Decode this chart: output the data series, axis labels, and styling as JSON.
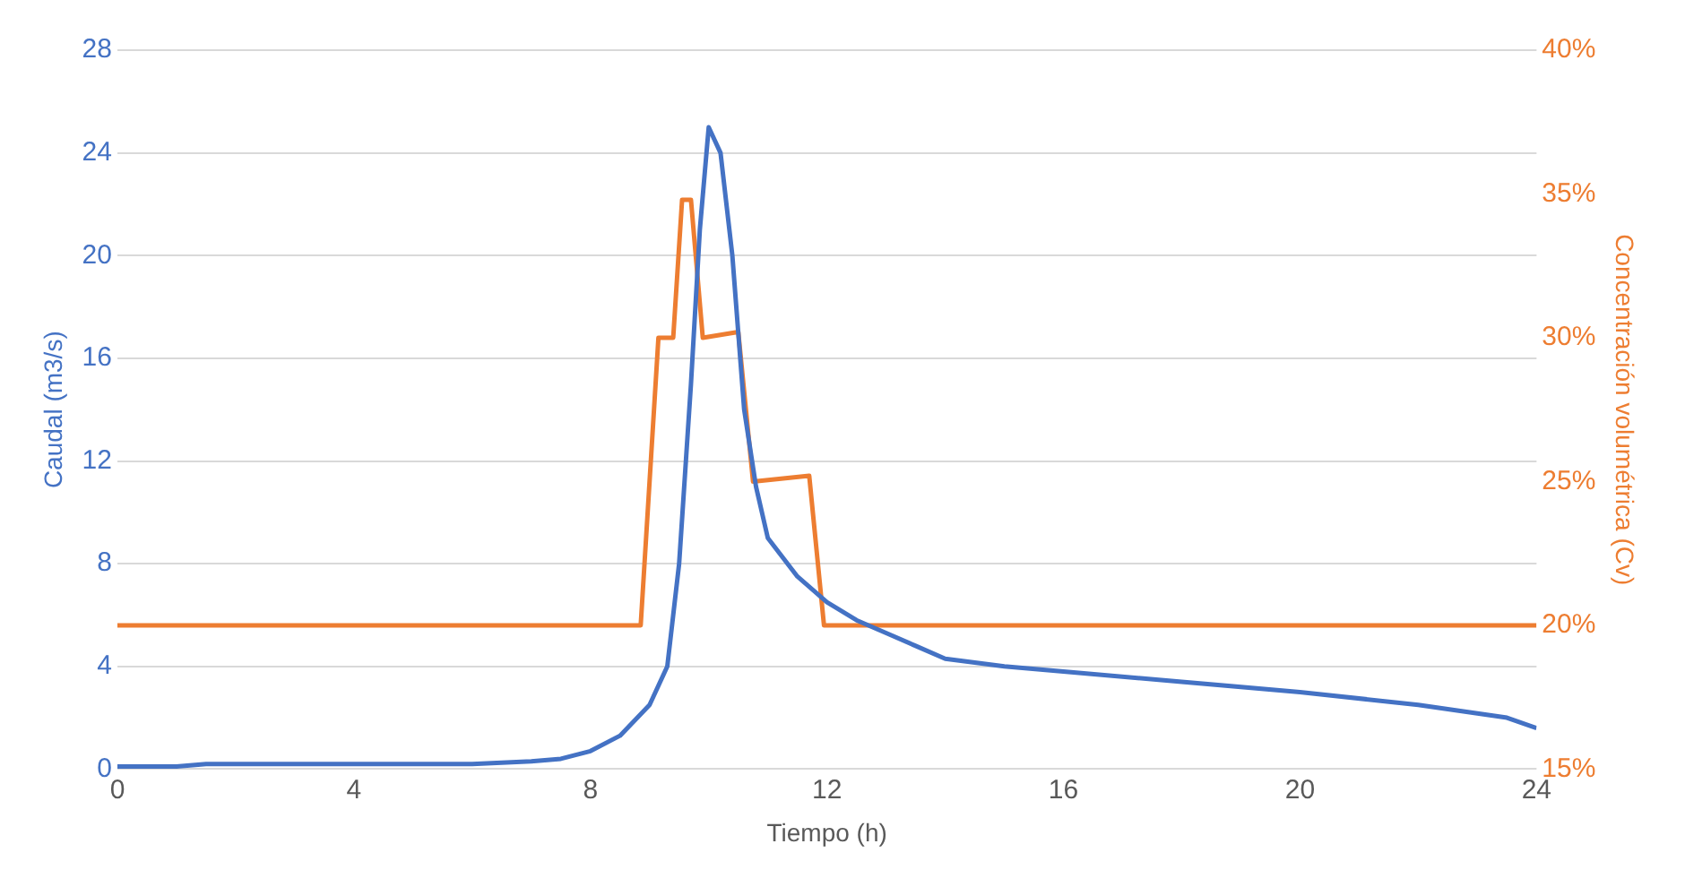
{
  "chart_data": {
    "type": "line",
    "xlabel": "Tiempo (h)",
    "ylabel": "Caudal (m3/s)",
    "y2label": "Concentración volumétrica (Cv)",
    "xlim": [
      0,
      24
    ],
    "xticks": [
      0,
      4,
      8,
      12,
      16,
      20,
      24
    ],
    "ylim": [
      0,
      28
    ],
    "yticks": [
      0,
      4,
      8,
      12,
      16,
      20,
      24,
      28
    ],
    "y2lim": [
      15,
      40
    ],
    "y2ticks": [
      {
        "value": 15,
        "label": "15%"
      },
      {
        "value": 20,
        "label": "20%"
      },
      {
        "value": 25,
        "label": "25%"
      },
      {
        "value": 30,
        "label": "30%"
      },
      {
        "value": 35,
        "label": "35%"
      },
      {
        "value": 40,
        "label": "40%"
      }
    ],
    "grid": "y",
    "legend": false,
    "marker": "none",
    "line_style": "solid",
    "series": [
      {
        "color": "#4472c4",
        "x": [
          0,
          1,
          1.5,
          6,
          7,
          7.5,
          8,
          8.5,
          9,
          9.3,
          9.5,
          9.7,
          9.85,
          10,
          10.2,
          10.4,
          10.6,
          10.8,
          11,
          11.5,
          12,
          12.5,
          13,
          13.5,
          14,
          15,
          16,
          18,
          20,
          22,
          23.5,
          24
        ],
        "values": [
          0.1,
          0.1,
          0.2,
          0.2,
          0.3,
          0.4,
          0.7,
          1.3,
          2.5,
          4,
          8,
          15,
          21,
          25,
          24,
          20,
          14,
          11,
          9,
          7.5,
          6.5,
          5.8,
          5.3,
          4.8,
          4.3,
          4,
          3.8,
          3.4,
          3,
          2.5,
          2,
          1.6
        ]
      },
      {
        "color": "#ed7d31",
        "axis": "y2",
        "x": [
          0,
          8.85,
          9.15,
          9.4,
          9.55,
          9.7,
          9.9,
          10.5,
          10.75,
          11.7,
          11.95,
          24
        ],
        "values": [
          20,
          20,
          30,
          30,
          34.8,
          34.8,
          30,
          30.2,
          25,
          25.2,
          20,
          20
        ]
      }
    ]
  }
}
